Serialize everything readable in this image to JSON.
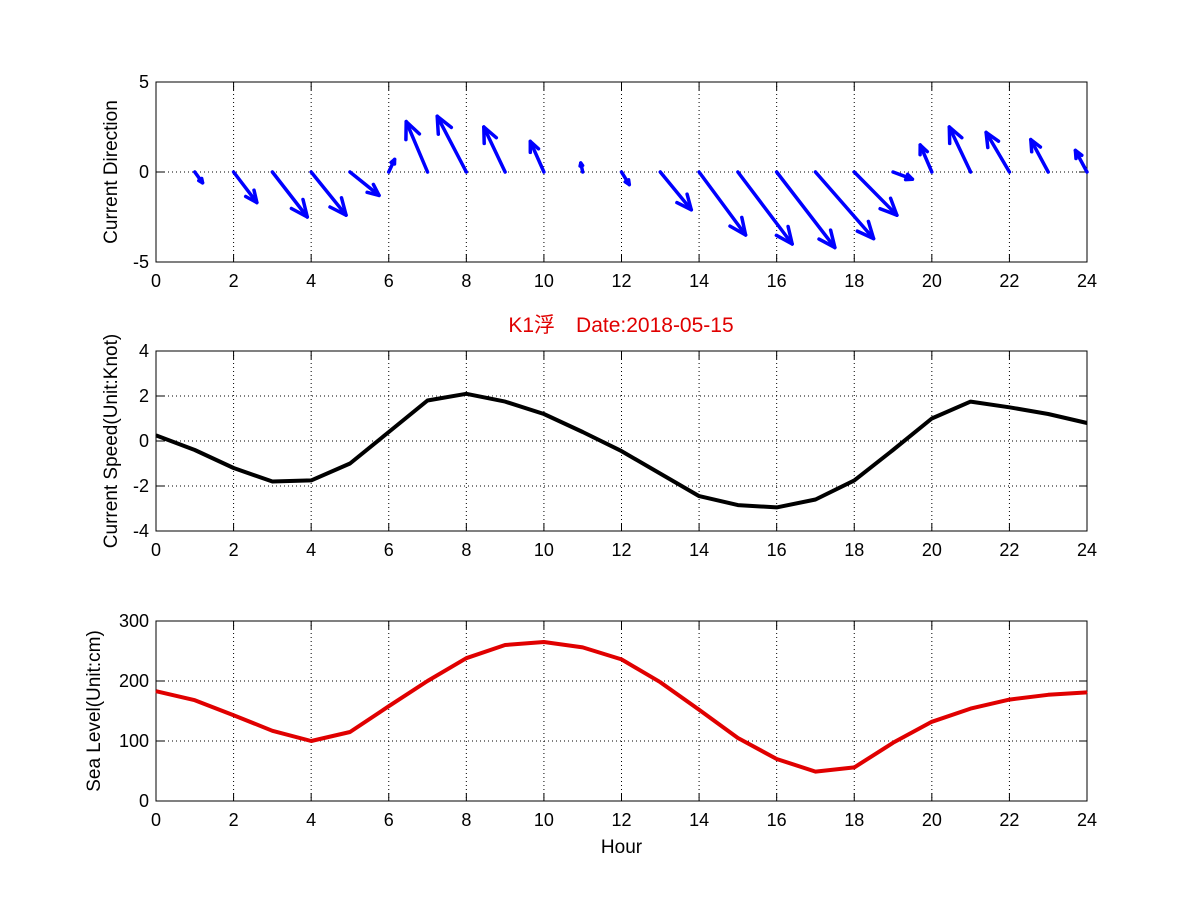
{
  "title": "K1浮　Date:2018-05-15",
  "colors": {
    "direction": "#0000ff",
    "speed": "#000000",
    "sea_level": "#e00000",
    "title": "#e00000"
  },
  "chart_data": [
    {
      "id": "direction",
      "type": "quiver",
      "ylabel": "Current Direction",
      "xlabel": "",
      "xlim": [
        0,
        24
      ],
      "ylim": [
        -5,
        5
      ],
      "xticks": [
        0,
        2,
        4,
        6,
        8,
        10,
        12,
        14,
        16,
        18,
        20,
        22,
        24
      ],
      "yticks": [
        -5,
        0,
        5
      ],
      "grid": true,
      "x": [
        1,
        2,
        3,
        4,
        5,
        6,
        7,
        8,
        9,
        10,
        11,
        12,
        13,
        14,
        15,
        16,
        17,
        18,
        19,
        20,
        21,
        22,
        23,
        24
      ],
      "u": [
        0.2,
        0.6,
        0.9,
        0.9,
        0.75,
        0.15,
        -0.55,
        -0.75,
        -0.55,
        -0.35,
        -0.05,
        0.2,
        0.8,
        1.2,
        1.4,
        1.5,
        1.5,
        1.1,
        0.5,
        -0.3,
        -0.55,
        -0.6,
        -0.45,
        -0.3
      ],
      "v": [
        -0.6,
        -1.7,
        -2.5,
        -2.4,
        -1.3,
        0.7,
        2.8,
        3.1,
        2.5,
        1.7,
        0.5,
        -0.7,
        -2.1,
        -3.5,
        -4.0,
        -4.2,
        -3.7,
        -2.4,
        -0.4,
        1.5,
        2.5,
        2.2,
        1.8,
        1.2
      ]
    },
    {
      "id": "speed",
      "type": "line",
      "ylabel": "Current Speed(Unit:Knot)",
      "xlabel": "",
      "xlim": [
        0,
        24
      ],
      "ylim": [
        -4,
        4
      ],
      "xticks": [
        0,
        2,
        4,
        6,
        8,
        10,
        12,
        14,
        16,
        18,
        20,
        22,
        24
      ],
      "yticks": [
        -4,
        -2,
        0,
        2,
        4
      ],
      "grid": true,
      "x": [
        0,
        1,
        2,
        3,
        4,
        5,
        6,
        7,
        8,
        9,
        10,
        11,
        12,
        13,
        14,
        15,
        16,
        17,
        18,
        19,
        20,
        21,
        22,
        23,
        24
      ],
      "values": [
        0.25,
        -0.4,
        -1.2,
        -1.8,
        -1.75,
        -1.0,
        0.4,
        1.8,
        2.1,
        1.75,
        1.2,
        0.4,
        -0.45,
        -1.45,
        -2.45,
        -2.85,
        -2.95,
        -2.6,
        -1.75,
        -0.4,
        1.0,
        1.75,
        1.5,
        1.2,
        0.8
      ]
    },
    {
      "id": "sea_level",
      "type": "line",
      "ylabel": "Sea Level(Unit:cm)",
      "xlabel": "Hour",
      "xlim": [
        0,
        24
      ],
      "ylim": [
        0,
        300
      ],
      "xticks": [
        0,
        2,
        4,
        6,
        8,
        10,
        12,
        14,
        16,
        18,
        20,
        22,
        24
      ],
      "yticks": [
        0,
        100,
        200,
        300
      ],
      "grid": true,
      "x": [
        0,
        1,
        2,
        3,
        4,
        5,
        6,
        7,
        8,
        9,
        10,
        11,
        12,
        13,
        14,
        15,
        16,
        17,
        18,
        19,
        20,
        21,
        22,
        23,
        24
      ],
      "values": [
        183,
        168,
        143,
        117,
        100,
        115,
        158,
        200,
        238,
        260,
        265,
        256,
        236,
        198,
        152,
        105,
        70,
        49,
        56,
        97,
        132,
        154,
        169,
        177,
        181
      ]
    }
  ]
}
